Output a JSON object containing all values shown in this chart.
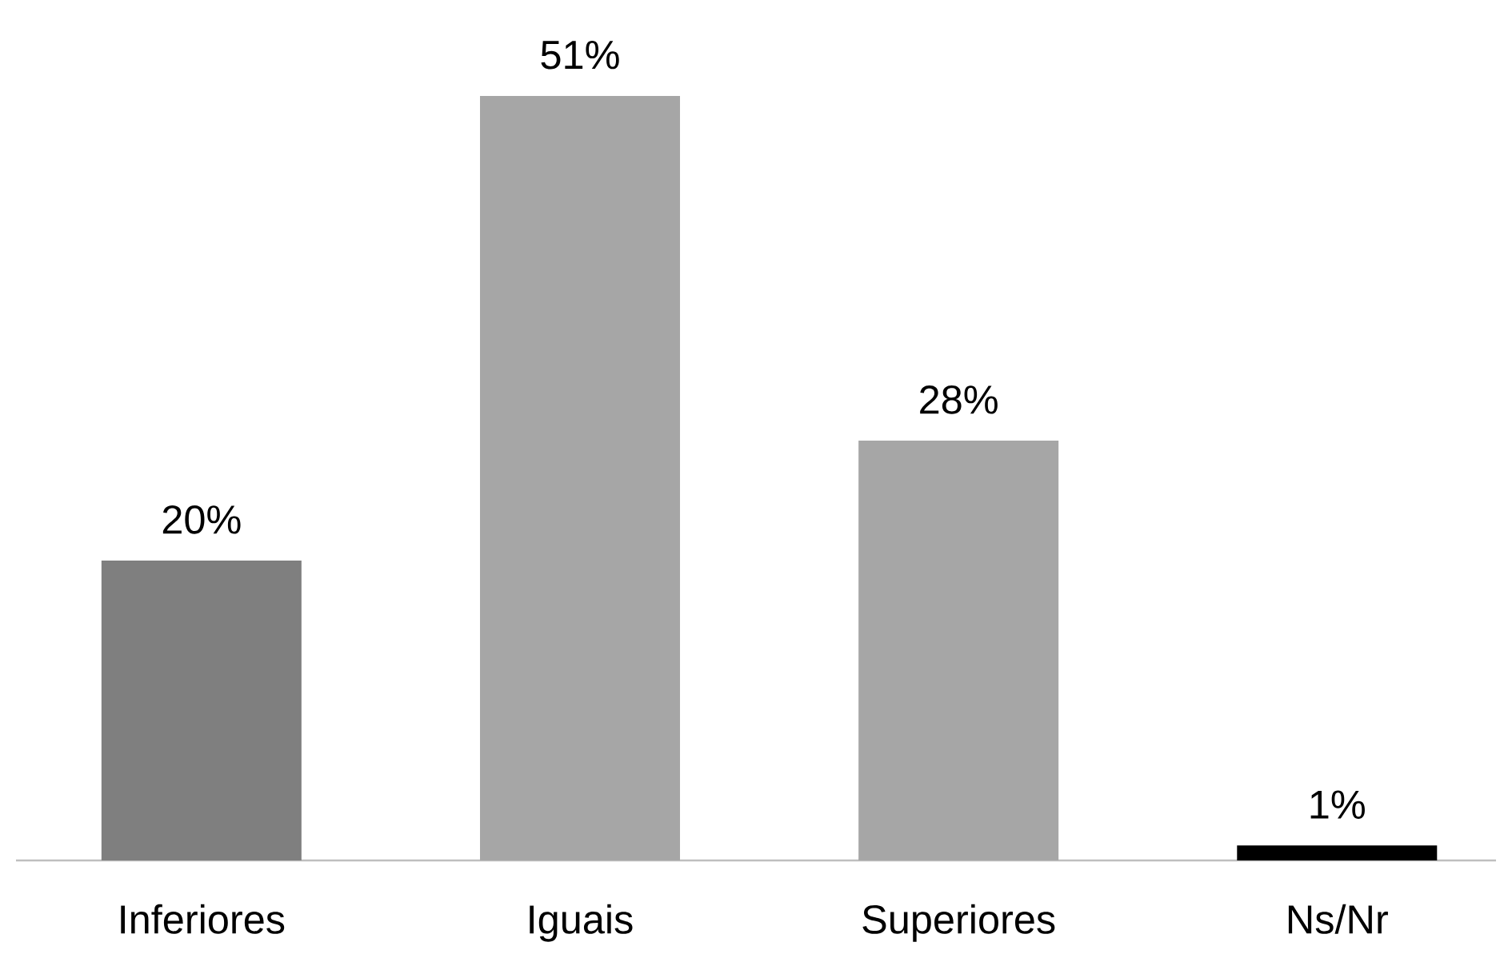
{
  "chart_data": {
    "type": "bar",
    "categories": [
      "Inferiores",
      "Iguais",
      "Superiores",
      "Ns/Nr"
    ],
    "values": [
      20,
      51,
      28,
      1
    ],
    "colors": [
      "#7f7f7f",
      "#a6a6a6",
      "#a6a6a6",
      "#000000"
    ],
    "value_labels": [
      "20%",
      "51%",
      "28%",
      "1%"
    ]
  }
}
